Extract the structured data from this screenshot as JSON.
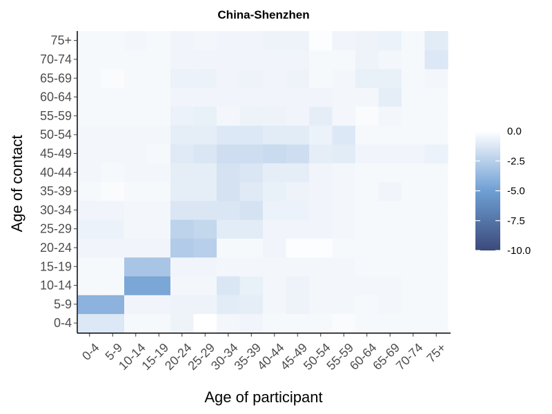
{
  "chart_data": {
    "type": "heatmap",
    "title": "China-Shenzhen",
    "xlabel": "Age of participant",
    "ylabel": "Age of contact",
    "x_categories": [
      "0-4",
      "5-9",
      "10-14",
      "15-19",
      "20-24",
      "25-29",
      "30-34",
      "35-39",
      "40-44",
      "45-49",
      "50-54",
      "55-59",
      "60-64",
      "65-69",
      "70-74",
      "75+"
    ],
    "y_categories": [
      "0-4",
      "5-9",
      "10-14",
      "15-19",
      "20-24",
      "25-29",
      "30-34",
      "35-39",
      "40-44",
      "45-49",
      "50-54",
      "55-59",
      "60-64",
      "65-69",
      "70-74",
      "75+"
    ],
    "values": [
      [
        -1.2,
        -1.2,
        -0.3,
        -0.3,
        -0.6,
        0.0,
        -0.4,
        -0.5,
        -0.3,
        -0.3,
        -0.3,
        -0.2,
        -0.3,
        -0.3,
        -0.3,
        -0.3
      ],
      [
        -4.0,
        -4.0,
        -0.5,
        -0.5,
        -0.6,
        -0.6,
        -1.0,
        -0.9,
        -0.4,
        -0.6,
        -0.4,
        -0.4,
        -0.3,
        -0.4,
        -0.3,
        -0.3
      ],
      [
        -0.3,
        -0.3,
        -4.6,
        -4.6,
        -0.4,
        -0.4,
        -1.3,
        -0.8,
        -0.4,
        -0.6,
        -0.4,
        -0.4,
        -0.4,
        -0.4,
        -0.3,
        -0.3
      ],
      [
        -0.3,
        -0.3,
        -3.0,
        -3.0,
        -0.5,
        -0.5,
        -0.4,
        -0.4,
        -0.4,
        -0.4,
        -0.4,
        -0.4,
        -0.3,
        -0.3,
        -0.3,
        -0.3
      ],
      [
        -0.5,
        -0.5,
        -0.5,
        -0.5,
        -2.7,
        -2.5,
        -0.3,
        -0.3,
        -0.5,
        -0.1,
        -0.1,
        -0.3,
        -0.3,
        -0.3,
        -0.3,
        -0.3
      ],
      [
        -0.7,
        -0.7,
        -0.4,
        -0.4,
        -2.3,
        -2.1,
        -1.0,
        -1.0,
        -0.5,
        -0.5,
        -0.5,
        -0.4,
        -0.3,
        -0.3,
        -0.3,
        -0.3
      ],
      [
        -0.5,
        -0.5,
        -0.4,
        -0.4,
        -1.3,
        -1.3,
        -1.3,
        -1.5,
        -0.7,
        -0.7,
        -0.5,
        -0.4,
        -0.3,
        -0.3,
        -0.3,
        -0.3
      ],
      [
        -0.3,
        -0.2,
        -0.3,
        -0.3,
        -0.9,
        -0.9,
        -1.5,
        -1.1,
        -0.8,
        -0.6,
        -0.5,
        -0.4,
        -0.3,
        -0.5,
        -0.3,
        -0.3
      ],
      [
        -0.4,
        -0.3,
        -0.4,
        -0.4,
        -0.9,
        -0.9,
        -1.5,
        -1.3,
        -0.9,
        -0.9,
        -0.5,
        -0.4,
        -0.3,
        -0.3,
        -0.3,
        -0.3
      ],
      [
        -0.4,
        -0.4,
        -0.4,
        -0.3,
        -1.1,
        -1.3,
        -1.7,
        -1.7,
        -1.9,
        -1.7,
        -0.9,
        -1.0,
        -0.5,
        -0.5,
        -0.5,
        -0.7
      ],
      [
        -0.4,
        -0.4,
        -0.4,
        -0.4,
        -0.9,
        -0.9,
        -1.2,
        -1.2,
        -1.0,
        -1.0,
        -0.7,
        -1.2,
        -0.3,
        -0.3,
        -0.3,
        -0.3
      ],
      [
        -0.3,
        -0.3,
        -0.3,
        -0.3,
        -0.7,
        -0.8,
        -0.4,
        -0.6,
        -0.6,
        -0.5,
        -0.9,
        -0.4,
        -0.2,
        -0.4,
        -0.3,
        -0.3
      ],
      [
        -0.3,
        -0.3,
        -0.3,
        -0.3,
        -0.5,
        -0.5,
        -0.5,
        -0.5,
        -0.5,
        -0.5,
        -0.5,
        -0.4,
        -0.4,
        -0.9,
        -0.3,
        -0.3
      ],
      [
        -0.3,
        -0.2,
        -0.3,
        -0.3,
        -0.7,
        -0.7,
        -0.5,
        -0.6,
        -0.5,
        -0.6,
        -0.3,
        -0.4,
        -0.8,
        -0.8,
        -0.3,
        -0.4
      ],
      [
        -0.3,
        -0.3,
        -0.3,
        -0.3,
        -0.5,
        -0.5,
        -0.5,
        -0.5,
        -0.5,
        -0.5,
        -0.3,
        -0.3,
        -0.6,
        -0.4,
        -0.3,
        -1.2
      ],
      [
        -0.3,
        -0.3,
        -0.4,
        -0.3,
        -0.5,
        -0.4,
        -0.5,
        -0.5,
        -0.6,
        -0.6,
        -0.1,
        -0.5,
        -0.6,
        -0.7,
        -0.3,
        -1.0
      ]
    ],
    "color_scale": {
      "min": -10.0,
      "max": 0.0,
      "high_color": "#ffffff",
      "mid_color": "#6f9fd4",
      "low_color": "#3b4a7a"
    },
    "legend": {
      "position": "right",
      "ticks": [
        0.0,
        -2.5,
        -5.0,
        -7.5,
        -10.0
      ],
      "tick_labels": [
        "0.0",
        "-2.5",
        "-5.0",
        "-7.5",
        "-10.0"
      ]
    },
    "grid": false
  }
}
